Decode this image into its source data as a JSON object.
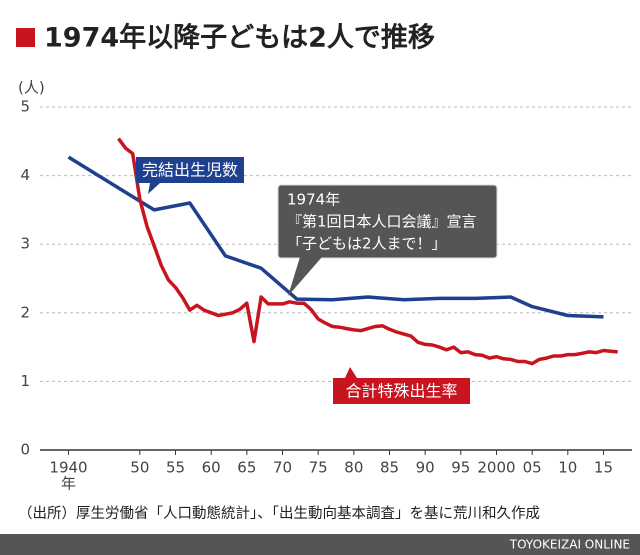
{
  "chart_data": {
    "type": "line",
    "title": "1974年以降子どもは2人で推移",
    "y_unit": "(人)",
    "x_unit": "年",
    "xlim": [
      1936,
      2019
    ],
    "ylim": [
      0,
      5
    ],
    "yticks": [
      0,
      1,
      2,
      3,
      4,
      5
    ],
    "xticks": [
      {
        "value": 1940,
        "label": "1940"
      },
      {
        "value": 1950,
        "label": "50"
      },
      {
        "value": 1955,
        "label": "55"
      },
      {
        "value": 1960,
        "label": "60"
      },
      {
        "value": 1965,
        "label": "65"
      },
      {
        "value": 1970,
        "label": "70"
      },
      {
        "value": 1975,
        "label": "75"
      },
      {
        "value": 1980,
        "label": "80"
      },
      {
        "value": 1985,
        "label": "85"
      },
      {
        "value": 1990,
        "label": "90"
      },
      {
        "value": 1995,
        "label": "95"
      },
      {
        "value": 2000,
        "label": "2000"
      },
      {
        "value": 2005,
        "label": "05"
      },
      {
        "value": 2010,
        "label": "10"
      },
      {
        "value": 2015,
        "label": "15"
      }
    ],
    "grid": true,
    "series": [
      {
        "name": "完結出生児数",
        "color": "#1f3f8f",
        "x": [
          1940,
          1952,
          1957,
          1962,
          1967,
          1972,
          1977,
          1982,
          1987,
          1992,
          1997,
          2002,
          2005,
          2010,
          2015
        ],
        "values": [
          4.27,
          3.5,
          3.6,
          2.83,
          2.65,
          2.2,
          2.19,
          2.23,
          2.19,
          2.21,
          2.21,
          2.23,
          2.09,
          1.96,
          1.94
        ]
      },
      {
        "name": "合計特殊出生率",
        "color": "#c8141e",
        "x": [
          1947,
          1948,
          1949,
          1950,
          1951,
          1952,
          1953,
          1954,
          1955,
          1956,
          1957,
          1958,
          1959,
          1960,
          1961,
          1962,
          1963,
          1964,
          1965,
          1966,
          1967,
          1968,
          1969,
          1970,
          1971,
          1972,
          1973,
          1974,
          1975,
          1976,
          1977,
          1978,
          1979,
          1980,
          1981,
          1982,
          1983,
          1984,
          1985,
          1986,
          1987,
          1988,
          1989,
          1990,
          1991,
          1992,
          1993,
          1994,
          1995,
          1996,
          1997,
          1998,
          1999,
          2000,
          2001,
          2002,
          2003,
          2004,
          2005,
          2006,
          2007,
          2008,
          2009,
          2010,
          2011,
          2012,
          2013,
          2014,
          2015,
          2016,
          2017
        ],
        "values": [
          4.54,
          4.4,
          4.32,
          3.65,
          3.26,
          2.98,
          2.69,
          2.48,
          2.37,
          2.22,
          2.04,
          2.11,
          2.04,
          2.0,
          1.96,
          1.98,
          2.0,
          2.05,
          2.14,
          1.58,
          2.23,
          2.13,
          2.13,
          2.13,
          2.16,
          2.14,
          2.14,
          2.05,
          1.91,
          1.85,
          1.8,
          1.79,
          1.77,
          1.75,
          1.74,
          1.77,
          1.8,
          1.81,
          1.76,
          1.72,
          1.69,
          1.66,
          1.57,
          1.54,
          1.53,
          1.5,
          1.46,
          1.5,
          1.42,
          1.43,
          1.39,
          1.38,
          1.34,
          1.36,
          1.33,
          1.32,
          1.29,
          1.29,
          1.26,
          1.32,
          1.34,
          1.37,
          1.37,
          1.39,
          1.39,
          1.41,
          1.43,
          1.42,
          1.45,
          1.44,
          1.43
        ]
      }
    ],
    "annotation": [
      "1974年",
      "『第1回日本人口会議』宣言",
      "「子どもは2人まで！」"
    ]
  },
  "source": "（出所）厚生労働省「人口動態統計」、「出生動向基本調査」を基に荒川和久作成",
  "credit": "TOYOKEIZAI ONLINE"
}
